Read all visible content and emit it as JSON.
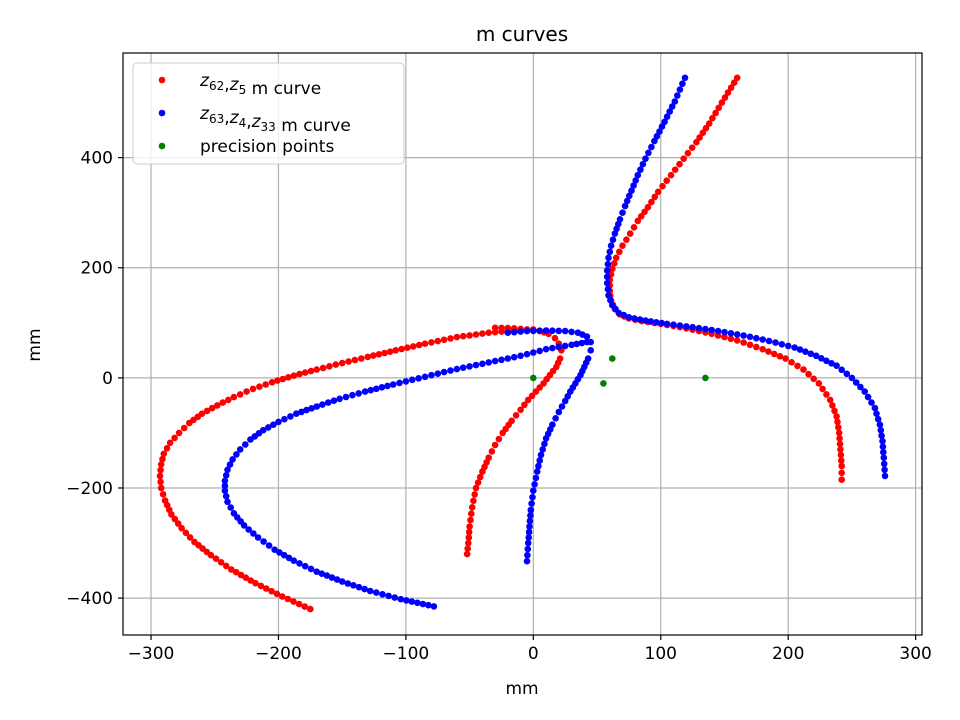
{
  "chart_data": {
    "type": "scatter",
    "title": "m curves",
    "xlabel": "mm",
    "ylabel": "mm",
    "xlim": [
      -322,
      305
    ],
    "ylim": [
      -467,
      590
    ],
    "xticks": [
      -300,
      -200,
      -100,
      0,
      100,
      200,
      300
    ],
    "yticks": [
      -400,
      -200,
      0,
      200,
      400
    ],
    "xtick_labels": [
      "−300",
      "−200",
      "−100",
      "0",
      "100",
      "200",
      "300"
    ],
    "ytick_labels": [
      "−400",
      "−200",
      "0",
      "200",
      "400"
    ],
    "grid": true,
    "legend_position": "upper-left",
    "series": [
      {
        "name": "z62,z5 m curve",
        "legend": {
          "parts": [
            [
              "z",
              "62"
            ],
            [
              "z",
              "5"
            ]
          ],
          "suffix": " m curve"
        },
        "color": "#ff0000",
        "segments": [
          [
            [
              -175,
              -420
            ],
            [
              -197,
              -397
            ],
            [
              -218,
              -373
            ],
            [
              -237,
              -348
            ],
            [
              -253,
              -322
            ],
            [
              -266,
              -298
            ],
            [
              -276,
              -273
            ],
            [
              -284,
              -248
            ],
            [
              -289,
              -223
            ],
            [
              -292,
              -200
            ],
            [
              -293,
              -178
            ],
            [
              -292,
              -157
            ],
            [
              -290,
              -138
            ],
            [
              -285,
              -118
            ],
            [
              -278,
              -100
            ],
            [
              -270,
              -82
            ],
            [
              -260,
              -65
            ],
            [
              -248,
              -50
            ],
            [
              -235,
              -35
            ],
            [
              -220,
              -20
            ],
            [
              -205,
              -8
            ],
            [
              -188,
              4
            ],
            [
              -170,
              15
            ],
            [
              -150,
              27
            ],
            [
              -130,
              38
            ],
            [
              -108,
              50
            ],
            [
              -85,
              62
            ],
            [
              -60,
              74
            ],
            [
              -35,
              82
            ],
            [
              -10,
              87
            ],
            [
              0,
              88
            ]
          ],
          [
            [
              -30,
              91
            ],
            [
              -15,
              90
            ],
            [
              -5,
              88
            ],
            [
              5,
              85
            ],
            [
              12,
              80
            ],
            [
              17,
              72
            ],
            [
              20,
              62
            ],
            [
              22,
              50
            ],
            [
              21,
              35
            ],
            [
              18,
              20
            ],
            [
              13,
              5
            ],
            [
              8,
              -10
            ],
            [
              2,
              -25
            ],
            [
              -4,
              -40
            ],
            [
              -10,
              -58
            ],
            [
              -17,
              -78
            ],
            [
              -24,
              -100
            ],
            [
              -30,
              -122
            ],
            [
              -35,
              -145
            ],
            [
              -40,
              -170
            ],
            [
              -45,
              -200
            ],
            [
              -48,
              -235
            ],
            [
              -50,
              -270
            ],
            [
              -51,
              -300
            ],
            [
              -52,
              -320
            ]
          ],
          [
            [
              160,
              545
            ],
            [
              148,
              500
            ],
            [
              138,
              462
            ],
            [
              128,
              428
            ],
            [
              118,
              398
            ],
            [
              108,
              368
            ],
            [
              98,
              338
            ],
            [
              90,
              310
            ],
            [
              82,
              285
            ],
            [
              76,
              262
            ],
            [
              70,
              240
            ],
            [
              65,
              218
            ],
            [
              62,
              198
            ],
            [
              60,
              178
            ],
            [
              60,
              158
            ],
            [
              61,
              140
            ],
            [
              64,
              125
            ],
            [
              68,
              115
            ],
            [
              75,
              108
            ],
            [
              85,
              103
            ],
            [
              100,
              98
            ],
            [
              120,
              90
            ],
            [
              140,
              80
            ],
            [
              160,
              68
            ],
            [
              180,
              52
            ],
            [
              198,
              35
            ],
            [
              212,
              15
            ],
            [
              224,
              -10
            ],
            [
              233,
              -40
            ],
            [
              238,
              -70
            ],
            [
              240,
              -100
            ],
            [
              241,
              -130
            ],
            [
              242,
              -160
            ],
            [
              242,
              -185
            ]
          ]
        ]
      },
      {
        "name": "z63,z4,z33 m curve",
        "legend": {
          "parts": [
            [
              "z",
              "63"
            ],
            [
              "z",
              "4"
            ],
            [
              "z",
              "33"
            ]
          ],
          "suffix": " m curve"
        },
        "color": "#0000ff",
        "segments": [
          [
            [
              -78,
              -415
            ],
            [
              -104,
              -402
            ],
            [
              -128,
              -387
            ],
            [
              -150,
              -370
            ],
            [
              -170,
              -352
            ],
            [
              -188,
              -332
            ],
            [
              -203,
              -312
            ],
            [
              -216,
              -290
            ],
            [
              -227,
              -268
            ],
            [
              -235,
              -246
            ],
            [
              -240,
              -225
            ],
            [
              -242,
              -205
            ],
            [
              -242,
              -187
            ],
            [
              -240,
              -167
            ],
            [
              -236,
              -148
            ],
            [
              -230,
              -130
            ],
            [
              -222,
              -112
            ],
            [
              -212,
              -95
            ],
            [
              -200,
              -80
            ],
            [
              -186,
              -65
            ],
            [
              -170,
              -52
            ],
            [
              -152,
              -38
            ],
            [
              -132,
              -25
            ],
            [
              -110,
              -12
            ],
            [
              -85,
              2
            ],
            [
              -60,
              16
            ],
            [
              -35,
              28
            ],
            [
              -10,
              40
            ],
            [
              10,
              52
            ],
            [
              30,
              60
            ],
            [
              42,
              65
            ]
          ],
          [
            [
              -20,
              82
            ],
            [
              -5,
              85
            ],
            [
              10,
              86
            ],
            [
              25,
              85
            ],
            [
              35,
              82
            ],
            [
              42,
              75
            ],
            [
              45,
              65
            ],
            [
              45,
              50
            ],
            [
              43,
              35
            ],
            [
              40,
              20
            ],
            [
              37,
              5
            ],
            [
              33,
              -10
            ],
            [
              29,
              -25
            ],
            [
              25,
              -42
            ],
            [
              20,
              -62
            ],
            [
              15,
              -85
            ],
            [
              10,
              -110
            ],
            [
              6,
              -140
            ],
            [
              3,
              -170
            ],
            [
              0,
              -205
            ],
            [
              -2,
              -240
            ],
            [
              -3,
              -270
            ],
            [
              -4,
              -300
            ],
            [
              -5,
              -333
            ]
          ],
          [
            [
              119,
              545
            ],
            [
              111,
              502
            ],
            [
              103,
              465
            ],
            [
              95,
              430
            ],
            [
              88,
              398
            ],
            [
              82,
              368
            ],
            [
              77,
              340
            ],
            [
              72,
              312
            ],
            [
              68,
              288
            ],
            [
              64,
              262
            ],
            [
              61,
              240
            ],
            [
              59,
              218
            ],
            [
              58,
              195
            ],
            [
              58,
              172
            ],
            [
              59,
              150
            ],
            [
              62,
              132
            ],
            [
              67,
              118
            ],
            [
              75,
              110
            ],
            [
              88,
              104
            ],
            [
              105,
              98
            ],
            [
              125,
              92
            ],
            [
              145,
              85
            ],
            [
              165,
              77
            ],
            [
              185,
              67
            ],
            [
              205,
              55
            ],
            [
              222,
              40
            ],
            [
              238,
              22
            ],
            [
              250,
              0
            ],
            [
              260,
              -25
            ],
            [
              268,
              -55
            ],
            [
              272,
              -85
            ],
            [
              274,
              -115
            ],
            [
              275,
              -145
            ],
            [
              276,
              -178
            ]
          ]
        ]
      },
      {
        "name": "precision points",
        "legend": {
          "parts": [],
          "suffix": "precision points"
        },
        "color": "#008000",
        "points": [
          [
            0,
            0
          ],
          [
            62,
            35
          ],
          [
            55,
            -10
          ],
          [
            135,
            0
          ]
        ]
      }
    ]
  }
}
